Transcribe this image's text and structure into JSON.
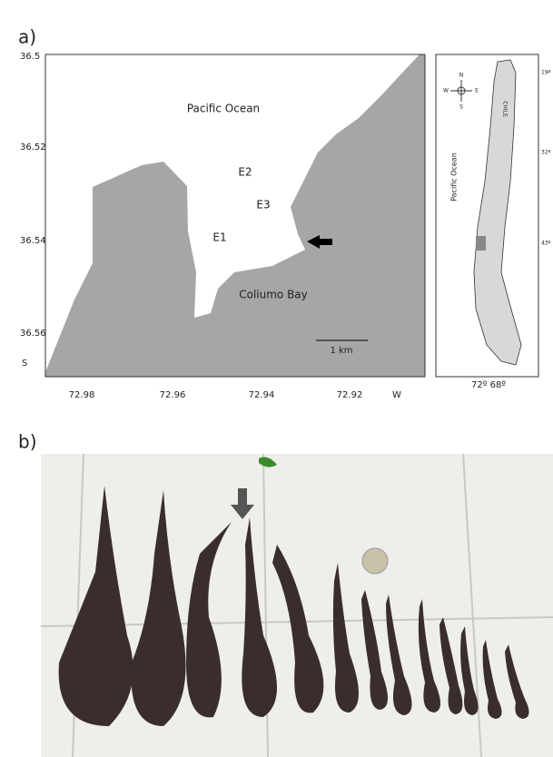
{
  "panel_a": {
    "label": "a)",
    "map": {
      "y_ticks": [
        "36.5",
        "36.52",
        "36.54",
        "36.56",
        "S"
      ],
      "x_ticks": [
        "72.98",
        "72.96",
        "72.94",
        "72.92",
        "W"
      ],
      "labels": {
        "ocean": "Pacific Ocean",
        "e2": "E2",
        "e3": "E3",
        "e1": "E1",
        "bay": "Coliumo Bay",
        "scale": "1 km"
      }
    },
    "inset": {
      "compass": {
        "n": "N",
        "w": "W",
        "e": "E",
        "s": "S"
      },
      "country": "CHILE",
      "ocean": "Pacific Ocean",
      "lat_ticks": [
        "19º",
        "32º",
        "43º"
      ],
      "lon_ticks": "72º 68º"
    }
  },
  "panel_b": {
    "label": "b)"
  }
}
